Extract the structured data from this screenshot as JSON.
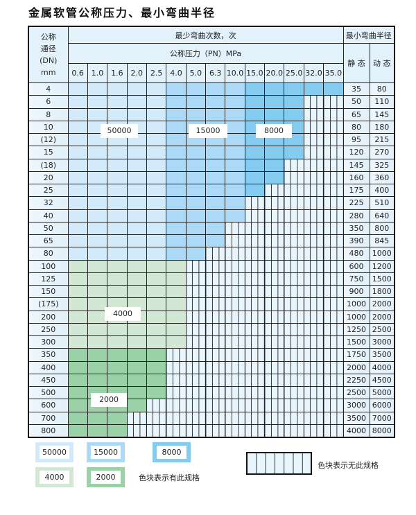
{
  "title": "金属软管公称压力、最小弯曲半径",
  "header": {
    "dn_label": [
      "公称",
      "通径",
      "(DN)",
      "mm"
    ],
    "cycles_label": "最少弯曲次数，次",
    "pressure_label": "公称压力（PN）MPa",
    "radius_label": "最小弯曲半径",
    "static_label": "静 态",
    "dynamic_label": "动 态",
    "pressures": [
      "0.6",
      "1.0",
      "1.6",
      "2.0",
      "2.5",
      "4.0",
      "5.0",
      "6.3",
      "10.0",
      "15.0",
      "20.0",
      "25.0",
      "32.0",
      "35.0"
    ]
  },
  "rows": [
    {
      "dn": "4",
      "available_pressure_columns": 14,
      "static": "35",
      "dynamic": "80"
    },
    {
      "dn": "6",
      "available_pressure_columns": 12,
      "static": "50",
      "dynamic": "110"
    },
    {
      "dn": "8",
      "available_pressure_columns": 12,
      "static": "65",
      "dynamic": "145"
    },
    {
      "dn": "10",
      "available_pressure_columns": 12,
      "static": "80",
      "dynamic": "180"
    },
    {
      "dn": "(12)",
      "available_pressure_columns": 12,
      "static": "95",
      "dynamic": "215"
    },
    {
      "dn": "15",
      "available_pressure_columns": 12,
      "static": "120",
      "dynamic": "270"
    },
    {
      "dn": "(18)",
      "available_pressure_columns": 11,
      "static": "145",
      "dynamic": "325"
    },
    {
      "dn": "20",
      "available_pressure_columns": 11,
      "static": "160",
      "dynamic": "360"
    },
    {
      "dn": "25",
      "available_pressure_columns": 10,
      "static": "175",
      "dynamic": "400"
    },
    {
      "dn": "32",
      "available_pressure_columns": 9,
      "static": "225",
      "dynamic": "510"
    },
    {
      "dn": "40",
      "available_pressure_columns": 9,
      "static": "280",
      "dynamic": "640"
    },
    {
      "dn": "50",
      "available_pressure_columns": 8,
      "static": "350",
      "dynamic": "800"
    },
    {
      "dn": "65",
      "available_pressure_columns": 8,
      "static": "390",
      "dynamic": "845"
    },
    {
      "dn": "80",
      "available_pressure_columns": 7,
      "static": "480",
      "dynamic": "1000"
    },
    {
      "dn": "100",
      "available_pressure_columns": 6,
      "static": "600",
      "dynamic": "1200"
    },
    {
      "dn": "125",
      "available_pressure_columns": 6,
      "static": "750",
      "dynamic": "1500"
    },
    {
      "dn": "150",
      "available_pressure_columns": 6,
      "static": "900",
      "dynamic": "1800"
    },
    {
      "dn": "(175)",
      "available_pressure_columns": 6,
      "static": "1000",
      "dynamic": "2000"
    },
    {
      "dn": "200",
      "available_pressure_columns": 6,
      "static": "1000",
      "dynamic": "2000"
    },
    {
      "dn": "250",
      "available_pressure_columns": 6,
      "static": "1250",
      "dynamic": "2500"
    },
    {
      "dn": "300",
      "available_pressure_columns": 6,
      "static": "1500",
      "dynamic": "3000"
    },
    {
      "dn": "350",
      "available_pressure_columns": 5,
      "static": "1750",
      "dynamic": "3500"
    },
    {
      "dn": "400",
      "available_pressure_columns": 5,
      "static": "2000",
      "dynamic": "4000"
    },
    {
      "dn": "450",
      "available_pressure_columns": 5,
      "static": "2250",
      "dynamic": "4500"
    },
    {
      "dn": "500",
      "available_pressure_columns": 5,
      "static": "2500",
      "dynamic": "5000"
    },
    {
      "dn": "600",
      "available_pressure_columns": 4,
      "static": "3000",
      "dynamic": "6000"
    },
    {
      "dn": "700",
      "available_pressure_columns": 3,
      "static": "3500",
      "dynamic": "7000"
    },
    {
      "dn": "800",
      "available_pressure_columns": 3,
      "static": "4000",
      "dynamic": "8000"
    }
  ],
  "zones": {
    "z50000": {
      "label": "50000",
      "color": "#d3eafa"
    },
    "z15000": {
      "label": "15000",
      "color": "#acd9f5"
    },
    "z8000": {
      "label": "8000",
      "color": "#84cbf0"
    },
    "z4000": {
      "label": "4000",
      "color": "#d2e8d5"
    },
    "z2000": {
      "label": "2000",
      "color": "#9bd1a6"
    }
  },
  "legend": {
    "has_spec_text": "色块表示有此规格",
    "no_spec_text": "色块表示无此规格"
  }
}
